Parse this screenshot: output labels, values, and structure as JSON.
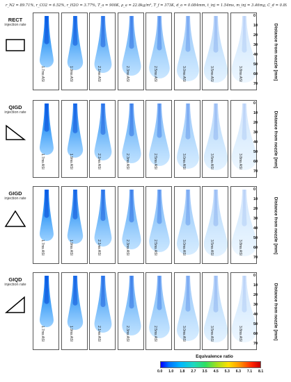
{
  "conditions": "r_N2 = 89.71%, r_CO2 = 6.52%, r_H2O = 3.77%, T_a = 900K, ρ_a = 22.8kg/m³, T_f = 373K, d_o = 0.084mm, t_inj = 1.54ms, m_inj = 3.46mg, C_d = 0.89",
  "rows": [
    {
      "name": "RECT",
      "sub": "injection rate",
      "shape": "rectangle-shape"
    },
    {
      "name": "QIGD",
      "sub": "injection rate",
      "shape": "right-triangle-down-shape"
    },
    {
      "name": "GIGD",
      "sub": "injection rate",
      "shape": "isosceles-triangle-shape"
    },
    {
      "name": "GIQD",
      "sub": "injection rate",
      "shape": "right-triangle-up-shape"
    }
  ],
  "times": [
    "1.7ms ASI",
    "1.9ms ASI",
    "2.1ms ASI",
    "2.3ms ASI",
    "2.5ms ASI",
    "3.0ms ASI",
    "3.5ms ASI",
    "3.8ms ASI"
  ],
  "axis": {
    "label": "Distance from nozzle [mm]",
    "ticks": [
      "0",
      "10",
      "20",
      "30",
      "40",
      "50",
      "60",
      "70"
    ]
  },
  "colorbar": {
    "title": "Equivalence ratio",
    "ticks": [
      "0.0",
      "1.0",
      "1.8",
      "2.7",
      "3.5",
      "4.5",
      "5.3",
      "6.3",
      "7.1",
      "8.1"
    ]
  }
}
